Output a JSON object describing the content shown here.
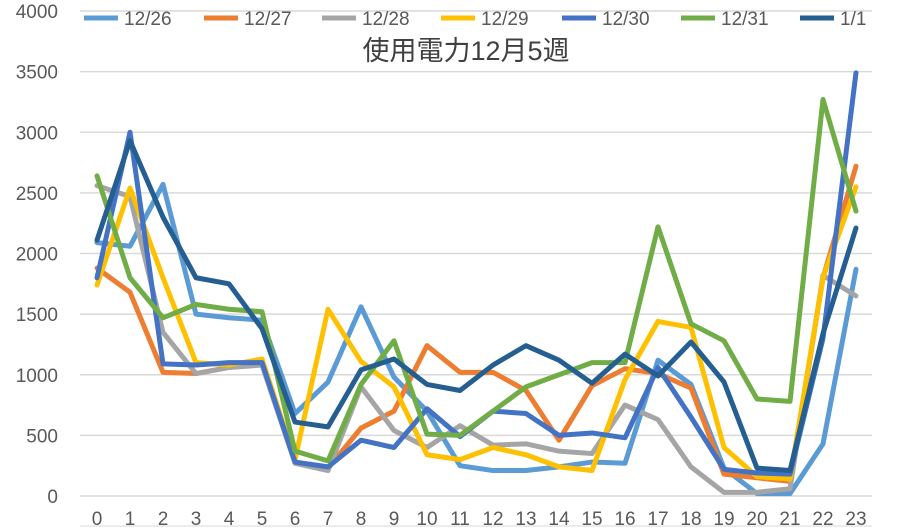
{
  "chart_data": {
    "type": "line",
    "title": "使用電力12月5週",
    "xlabel": "",
    "ylabel": "",
    "ylim": [
      0,
      4000
    ],
    "yticks": [
      0,
      500,
      1000,
      1500,
      2000,
      2500,
      3000,
      3500,
      4000
    ],
    "grid": true,
    "legend_position": "top",
    "categories": [
      "0",
      "1",
      "2",
      "3",
      "4",
      "5",
      "6",
      "7",
      "8",
      "9",
      "10",
      "11",
      "12",
      "13",
      "14",
      "15",
      "16",
      "17",
      "18",
      "19",
      "20",
      "21",
      "22",
      "23"
    ],
    "series": [
      {
        "name": "12/26",
        "color": "#5B9BD5",
        "values": [
          2090,
          2060,
          2570,
          1500,
          1470,
          1450,
          680,
          940,
          1560,
          980,
          700,
          250,
          210,
          210,
          240,
          280,
          270,
          1120,
          920,
          230,
          20,
          20,
          430,
          1870
        ]
      },
      {
        "name": "12/27",
        "color": "#ED7D31",
        "values": [
          1880,
          1680,
          1020,
          1010,
          1060,
          1090,
          280,
          230,
          560,
          700,
          1240,
          1020,
          1020,
          870,
          460,
          910,
          1050,
          1010,
          890,
          180,
          150,
          120,
          1800,
          2720
        ]
      },
      {
        "name": "12/28",
        "color": "#A5A5A5",
        "values": [
          2560,
          2470,
          1350,
          1010,
          1060,
          1080,
          270,
          210,
          900,
          540,
          400,
          580,
          420,
          430,
          370,
          350,
          750,
          630,
          240,
          30,
          30,
          60,
          1820,
          1650
        ]
      },
      {
        "name": "12/29",
        "color": "#FFC000",
        "values": [
          1740,
          2540,
          1800,
          1100,
          1080,
          1130,
          300,
          1540,
          1110,
          900,
          340,
          300,
          400,
          340,
          240,
          210,
          960,
          1440,
          1390,
          400,
          160,
          140,
          1800,
          2550
        ]
      },
      {
        "name": "12/30",
        "color": "#4472C4",
        "values": [
          1800,
          3000,
          1090,
          1080,
          1100,
          1100,
          280,
          240,
          460,
          400,
          720,
          490,
          700,
          680,
          500,
          520,
          480,
          1060,
          650,
          220,
          190,
          180,
          1300,
          3490
        ]
      },
      {
        "name": "12/31",
        "color": "#70AD47",
        "values": [
          2640,
          1800,
          1470,
          1580,
          1540,
          1520,
          370,
          290,
          920,
          1280,
          510,
          500,
          700,
          900,
          1000,
          1100,
          1100,
          2220,
          1420,
          1280,
          800,
          780,
          3270,
          2350
        ]
      },
      {
        "name": "1/1",
        "color": "#255E91",
        "values": [
          2110,
          2930,
          2300,
          1800,
          1750,
          1380,
          610,
          570,
          1040,
          1130,
          920,
          870,
          1080,
          1240,
          1120,
          930,
          1170,
          990,
          1270,
          940,
          230,
          210,
          1340,
          2210
        ]
      }
    ]
  }
}
